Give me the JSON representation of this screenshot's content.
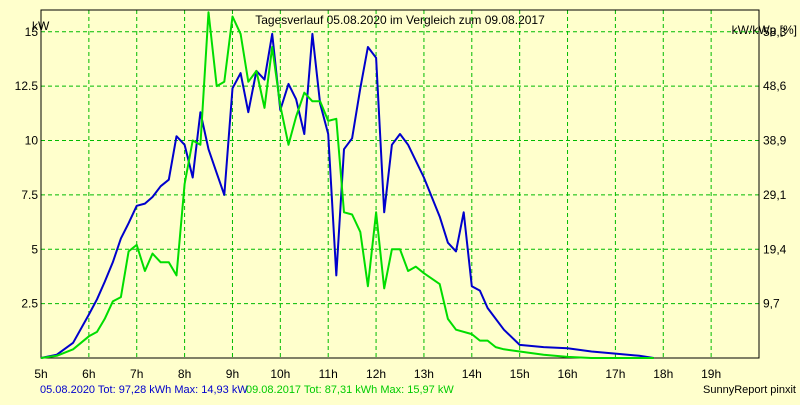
{
  "chart_data": {
    "type": "line",
    "title": "Tagesverlauf 05.08.2020 im Vergleich zum 09.08.2017",
    "ylabel_left": "kW",
    "ylabel_right": "kW/kWp [%]",
    "xlim": [
      5,
      20
    ],
    "ylim": [
      0,
      16
    ],
    "grid": true,
    "x_ticks": [
      {
        "x": 5,
        "label": "5h"
      },
      {
        "x": 6,
        "label": "6h"
      },
      {
        "x": 7,
        "label": "7h"
      },
      {
        "x": 8,
        "label": "8h"
      },
      {
        "x": 9,
        "label": "9h"
      },
      {
        "x": 10,
        "label": "10h"
      },
      {
        "x": 11,
        "label": "11h"
      },
      {
        "x": 12,
        "label": "12h"
      },
      {
        "x": 13,
        "label": "13h"
      },
      {
        "x": 14,
        "label": "14h"
      },
      {
        "x": 15,
        "label": "15h"
      },
      {
        "x": 16,
        "label": "16h"
      },
      {
        "x": 17,
        "label": "17h"
      },
      {
        "x": 18,
        "label": "18h"
      },
      {
        "x": 19,
        "label": "19h"
      }
    ],
    "y_ticks_left": [
      {
        "y": 2.5,
        "label": "2.5"
      },
      {
        "y": 5,
        "label": "5"
      },
      {
        "y": 7.5,
        "label": "7.5"
      },
      {
        "y": 10,
        "label": "10"
      },
      {
        "y": 12.5,
        "label": "12.5"
      },
      {
        "y": 15,
        "label": "15"
      }
    ],
    "y_ticks_right": [
      {
        "y": 2.5,
        "label": "9,7"
      },
      {
        "y": 5,
        "label": "19,4"
      },
      {
        "y": 7.5,
        "label": "29,1"
      },
      {
        "y": 10,
        "label": "38,9"
      },
      {
        "y": 12.5,
        "label": "48,6"
      },
      {
        "y": 15,
        "label": "58,3"
      }
    ],
    "series": [
      {
        "name": "05.08.2020",
        "color": "#0000cc",
        "legend": "05.08.2020 Tot: 97,28 kWh Max: 14,93 kW",
        "points": [
          [
            5.0,
            0.0
          ],
          [
            5.33,
            0.15
          ],
          [
            5.67,
            0.7
          ],
          [
            6.0,
            2.0
          ],
          [
            6.17,
            2.7
          ],
          [
            6.33,
            3.5
          ],
          [
            6.5,
            4.4
          ],
          [
            6.67,
            5.5
          ],
          [
            6.83,
            6.2
          ],
          [
            7.0,
            7.0
          ],
          [
            7.17,
            7.1
          ],
          [
            7.33,
            7.4
          ],
          [
            7.5,
            7.9
          ],
          [
            7.67,
            8.2
          ],
          [
            7.83,
            10.2
          ],
          [
            8.0,
            9.8
          ],
          [
            8.17,
            8.3
          ],
          [
            8.33,
            11.3
          ],
          [
            8.5,
            9.6
          ],
          [
            8.67,
            8.5
          ],
          [
            8.83,
            7.5
          ],
          [
            9.0,
            12.4
          ],
          [
            9.17,
            13.1
          ],
          [
            9.33,
            11.3
          ],
          [
            9.5,
            13.2
          ],
          [
            9.67,
            12.8
          ],
          [
            9.83,
            14.9
          ],
          [
            10.0,
            11.4
          ],
          [
            10.17,
            12.6
          ],
          [
            10.33,
            11.9
          ],
          [
            10.5,
            10.3
          ],
          [
            10.67,
            14.9
          ],
          [
            10.83,
            11.7
          ],
          [
            11.0,
            10.3
          ],
          [
            11.17,
            3.8
          ],
          [
            11.33,
            9.6
          ],
          [
            11.5,
            10.1
          ],
          [
            11.67,
            12.4
          ],
          [
            11.83,
            14.3
          ],
          [
            12.0,
            13.8
          ],
          [
            12.17,
            6.7
          ],
          [
            12.33,
            9.8
          ],
          [
            12.5,
            10.3
          ],
          [
            12.67,
            9.8
          ],
          [
            13.0,
            8.3
          ],
          [
            13.33,
            6.5
          ],
          [
            13.5,
            5.3
          ],
          [
            13.67,
            4.9
          ],
          [
            13.83,
            6.7
          ],
          [
            14.0,
            3.3
          ],
          [
            14.17,
            3.1
          ],
          [
            14.33,
            2.3
          ],
          [
            14.67,
            1.3
          ],
          [
            15.0,
            0.6
          ],
          [
            15.5,
            0.5
          ],
          [
            16.0,
            0.45
          ],
          [
            16.5,
            0.3
          ],
          [
            17.0,
            0.2
          ],
          [
            17.5,
            0.1
          ],
          [
            17.8,
            0.0
          ]
        ]
      },
      {
        "name": "09.08.2017",
        "color": "#00dd00",
        "legend": "09.08.2017 Tot: 87,31 kWh Max: 15,97 kW",
        "points": [
          [
            5.0,
            0.0
          ],
          [
            5.33,
            0.1
          ],
          [
            5.67,
            0.4
          ],
          [
            6.0,
            1.0
          ],
          [
            6.17,
            1.2
          ],
          [
            6.33,
            1.8
          ],
          [
            6.5,
            2.6
          ],
          [
            6.67,
            2.8
          ],
          [
            6.83,
            4.9
          ],
          [
            7.0,
            5.2
          ],
          [
            7.17,
            4.0
          ],
          [
            7.33,
            4.8
          ],
          [
            7.5,
            4.4
          ],
          [
            7.67,
            4.4
          ],
          [
            7.83,
            3.8
          ],
          [
            8.0,
            8.0
          ],
          [
            8.17,
            10.0
          ],
          [
            8.33,
            9.8
          ],
          [
            8.5,
            15.9
          ],
          [
            8.67,
            12.5
          ],
          [
            8.83,
            12.7
          ],
          [
            9.0,
            15.7
          ],
          [
            9.17,
            14.9
          ],
          [
            9.33,
            12.7
          ],
          [
            9.5,
            13.2
          ],
          [
            9.67,
            11.5
          ],
          [
            9.83,
            14.3
          ],
          [
            10.0,
            11.6
          ],
          [
            10.17,
            9.8
          ],
          [
            10.33,
            11.1
          ],
          [
            10.5,
            12.2
          ],
          [
            10.67,
            11.8
          ],
          [
            10.83,
            11.8
          ],
          [
            11.0,
            10.9
          ],
          [
            11.17,
            11.0
          ],
          [
            11.33,
            6.7
          ],
          [
            11.5,
            6.6
          ],
          [
            11.67,
            5.8
          ],
          [
            11.83,
            3.3
          ],
          [
            12.0,
            6.7
          ],
          [
            12.17,
            3.2
          ],
          [
            12.33,
            5.0
          ],
          [
            12.5,
            5.0
          ],
          [
            12.67,
            4.0
          ],
          [
            12.83,
            4.2
          ],
          [
            13.0,
            3.9
          ],
          [
            13.33,
            3.4
          ],
          [
            13.5,
            1.8
          ],
          [
            13.67,
            1.3
          ],
          [
            14.0,
            1.1
          ],
          [
            14.17,
            0.8
          ],
          [
            14.33,
            0.8
          ],
          [
            14.5,
            0.5
          ],
          [
            14.67,
            0.4
          ],
          [
            15.0,
            0.3
          ],
          [
            15.5,
            0.15
          ],
          [
            16.0,
            0.05
          ],
          [
            16.5,
            0.0
          ],
          [
            17.0,
            0.0
          ],
          [
            17.8,
            0.0
          ]
        ]
      }
    ],
    "credit": "SunnyReport pinxit"
  }
}
